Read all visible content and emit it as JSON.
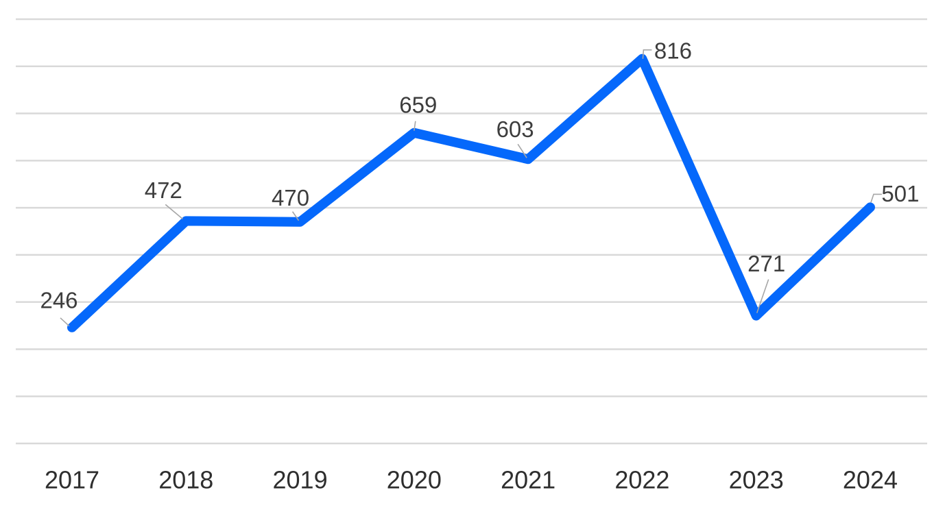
{
  "chart_data": {
    "type": "line",
    "title": "",
    "categories": [
      "2017",
      "2018",
      "2019",
      "2020",
      "2021",
      "2022",
      "2023",
      "2024"
    ],
    "values": [
      246,
      472,
      470,
      659,
      603,
      816,
      271,
      501
    ],
    "data_labels": [
      "246",
      "472",
      "470",
      "659",
      "603",
      "816",
      "271",
      "501"
    ],
    "ylim": [
      0,
      900
    ],
    "gridline_values": [
      0,
      100,
      200,
      300,
      400,
      500,
      600,
      700,
      800,
      900
    ],
    "grid": "horizontal-only",
    "legend": "none",
    "y_axis_tick_labels": "hidden",
    "colors": {
      "line": "#0568fb",
      "gridline": "#d9d9d9",
      "leader": "#a6a6a6",
      "data_label": "#3d3d3d",
      "axis_label": "#2e2e2e",
      "background": "#ffffff"
    }
  }
}
